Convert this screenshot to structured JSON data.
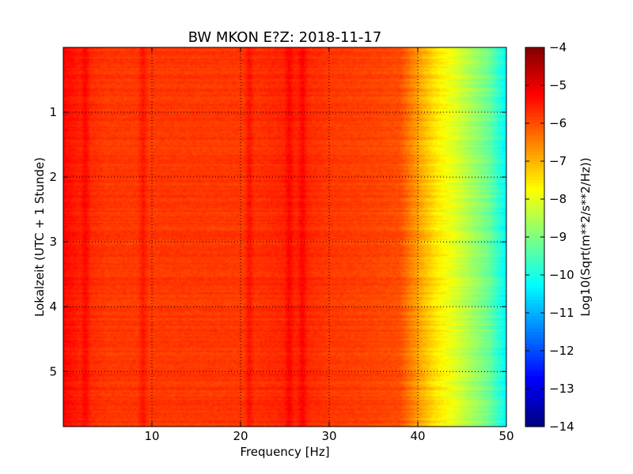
{
  "chart_data": {
    "type": "heatmap",
    "title": "BW MKON E?Z: 2018-11-17",
    "xlabel": "Frequency [Hz]",
    "ylabel": "Lokalzeit (UTC + 1 Stunde)",
    "xlim": [
      0,
      50
    ],
    "ylim": [
      5.85,
      0
    ],
    "x_ticks": [
      10,
      20,
      30,
      40,
      50
    ],
    "y_ticks": [
      1,
      2,
      3,
      4,
      5
    ],
    "grid": true,
    "colormap": "jet",
    "colorbar": {
      "label": "Log10(Sqrt(m**2/s**2/Hz))",
      "range": [
        -14,
        -4
      ],
      "ticks": [
        -4,
        -5,
        -6,
        -7,
        -8,
        -9,
        -10,
        -11,
        -12,
        -13,
        -14
      ]
    },
    "spectral_profile": {
      "frequency_hz": [
        0,
        2,
        5,
        10,
        20,
        25,
        27,
        30,
        35,
        38,
        40,
        42,
        44,
        46,
        48,
        50
      ],
      "log10_amplitude": [
        -5.3,
        -5.6,
        -5.8,
        -5.8,
        -5.8,
        -5.6,
        -5.6,
        -5.8,
        -5.9,
        -6.0,
        -6.8,
        -7.5,
        -8.0,
        -8.6,
        -9.2,
        -10.3
      ]
    },
    "strong_lines_hz": [
      2.5,
      9,
      21,
      25.5,
      27
    ]
  }
}
